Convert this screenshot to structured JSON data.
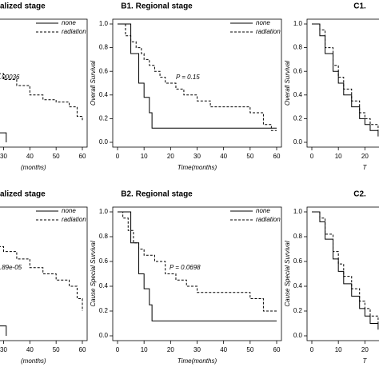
{
  "chart_data": [
    {
      "type": "line",
      "step": true,
      "title": "alized stage",
      "annotation": ".00036",
      "xlabel": "(months)",
      "xlim": [
        0,
        60
      ],
      "ylim": [
        0,
        1
      ],
      "xticks": [
        30,
        40,
        50,
        60
      ],
      "series": [
        {
          "name": "none",
          "color": "#000000",
          "linestyle": "solid",
          "x": [
            25,
            31
          ],
          "values": [
            0.08,
            0.0
          ]
        },
        {
          "name": "radiation",
          "color": "#000000",
          "linestyle": "dashed",
          "x": [
            25,
            30,
            35,
            40,
            45,
            50,
            55,
            58,
            60
          ],
          "values": [
            0.58,
            0.53,
            0.48,
            0.4,
            0.36,
            0.34,
            0.3,
            0.22,
            0.18
          ]
        }
      ]
    },
    {
      "type": "line",
      "step": true,
      "title": "B1. Regional stage",
      "annotation": "P = 0.15",
      "xlabel": "Time(months)",
      "ylabel": "Overall Survival",
      "xlim": [
        0,
        60
      ],
      "ylim": [
        0,
        1
      ],
      "xticks": [
        0,
        10,
        20,
        30,
        40,
        50,
        60
      ],
      "yticks": [
        {
          "value": 0,
          "label": "0.0"
        },
        0.2,
        0.4,
        0.6,
        0.8,
        {
          "value": 1,
          "label": "1.0"
        }
      ],
      "series": [
        {
          "name": "none",
          "color": "#000000",
          "linestyle": "solid",
          "x": [
            0,
            5,
            8,
            10,
            12,
            13,
            60
          ],
          "values": [
            1,
            0.75,
            0.5,
            0.38,
            0.25,
            0.12,
            0.12
          ]
        },
        {
          "name": "radiation",
          "color": "#000000",
          "linestyle": "dashed",
          "x": [
            0,
            3,
            5,
            7,
            9,
            10,
            12,
            14,
            16,
            18,
            22,
            25,
            30,
            35,
            50,
            55,
            58,
            60
          ],
          "values": [
            1,
            0.9,
            0.85,
            0.8,
            0.75,
            0.7,
            0.65,
            0.6,
            0.55,
            0.5,
            0.45,
            0.4,
            0.35,
            0.3,
            0.25,
            0.15,
            0.1,
            0.1
          ]
        }
      ]
    },
    {
      "type": "line",
      "step": true,
      "title": "C1.",
      "xlabel": "T",
      "ylabel": "Overall Survival",
      "xlim": [
        0,
        60
      ],
      "ylim": [
        0,
        1
      ],
      "xticks": [
        0,
        10,
        20
      ],
      "yticks": [
        {
          "value": 0,
          "label": "0.0"
        },
        0.2,
        0.4,
        0.6,
        0.8,
        {
          "value": 1,
          "label": "1.0"
        }
      ],
      "series": [
        {
          "name": "none",
          "color": "#000000",
          "linestyle": "solid",
          "x": [
            0,
            3,
            5,
            8,
            10,
            12,
            15,
            18,
            20,
            22,
            25
          ],
          "values": [
            1,
            0.9,
            0.75,
            0.6,
            0.5,
            0.4,
            0.3,
            0.2,
            0.15,
            0.1,
            0.05
          ]
        },
        {
          "name": "radiation",
          "color": "#000000",
          "linestyle": "dashed",
          "x": [
            0,
            3,
            5,
            8,
            10,
            12,
            15,
            18,
            20,
            22,
            25
          ],
          "values": [
            1,
            0.95,
            0.8,
            0.65,
            0.55,
            0.45,
            0.35,
            0.25,
            0.2,
            0.15,
            0.1
          ]
        }
      ]
    },
    {
      "type": "line",
      "step": true,
      "title": "alized stage",
      "annotation": ".89e-05",
      "xlabel": "(months)",
      "xlim": [
        0,
        60
      ],
      "ylim": [
        0,
        1
      ],
      "xticks": [
        30,
        40,
        50,
        60
      ],
      "series": [
        {
          "name": "none",
          "color": "#000000",
          "linestyle": "solid",
          "x": [
            25,
            31
          ],
          "values": [
            0.08,
            0.0
          ]
        },
        {
          "name": "radiation",
          "color": "#000000",
          "linestyle": "dashed",
          "x": [
            25,
            30,
            35,
            40,
            45,
            50,
            55,
            58,
            60
          ],
          "values": [
            0.72,
            0.68,
            0.62,
            0.55,
            0.5,
            0.45,
            0.4,
            0.3,
            0.2
          ]
        }
      ]
    },
    {
      "type": "line",
      "step": true,
      "title": "B2. Regional stage",
      "annotation": "P = 0.0698",
      "xlabel": "Time(months)",
      "ylabel": "Cause Special Survival",
      "xlim": [
        0,
        60
      ],
      "ylim": [
        0,
        1
      ],
      "xticks": [
        0,
        10,
        20,
        30,
        40,
        50,
        60
      ],
      "yticks": [
        {
          "value": 0,
          "label": "0.0"
        },
        0.2,
        0.4,
        0.6,
        0.8,
        {
          "value": 1,
          "label": "1.0"
        }
      ],
      "series": [
        {
          "name": "none",
          "color": "#000000",
          "linestyle": "solid",
          "x": [
            0,
            5,
            8,
            10,
            12,
            13,
            60
          ],
          "values": [
            1,
            0.75,
            0.5,
            0.38,
            0.25,
            0.12,
            0.12
          ]
        },
        {
          "name": "radiation",
          "color": "#000000",
          "linestyle": "dashed",
          "x": [
            0,
            2,
            4,
            6,
            8,
            10,
            14,
            18,
            22,
            26,
            30,
            50,
            55,
            60
          ],
          "values": [
            1,
            0.95,
            0.85,
            0.75,
            0.7,
            0.65,
            0.6,
            0.5,
            0.45,
            0.4,
            0.35,
            0.3,
            0.2,
            0.2
          ]
        }
      ]
    },
    {
      "type": "line",
      "step": true,
      "title": "C2.",
      "xlabel": "T",
      "ylabel": "Cause Special Survival",
      "xlim": [
        0,
        60
      ],
      "ylim": [
        0,
        1
      ],
      "xticks": [
        0,
        10,
        20
      ],
      "yticks": [
        {
          "value": 0,
          "label": "0.0"
        },
        0.2,
        0.4,
        0.6,
        0.8,
        {
          "value": 1,
          "label": "1.0"
        }
      ],
      "series": [
        {
          "name": "none",
          "color": "#000000",
          "linestyle": "solid",
          "x": [
            0,
            3,
            5,
            8,
            10,
            12,
            15,
            18,
            20,
            22,
            25
          ],
          "values": [
            1,
            0.92,
            0.78,
            0.62,
            0.52,
            0.42,
            0.32,
            0.22,
            0.16,
            0.1,
            0.05
          ]
        },
        {
          "name": "radiation",
          "color": "#000000",
          "linestyle": "dashed",
          "x": [
            0,
            3,
            5,
            8,
            10,
            12,
            15,
            18,
            20,
            22,
            25
          ],
          "values": [
            1,
            0.95,
            0.82,
            0.68,
            0.58,
            0.48,
            0.38,
            0.28,
            0.22,
            0.16,
            0.1
          ]
        }
      ]
    }
  ]
}
